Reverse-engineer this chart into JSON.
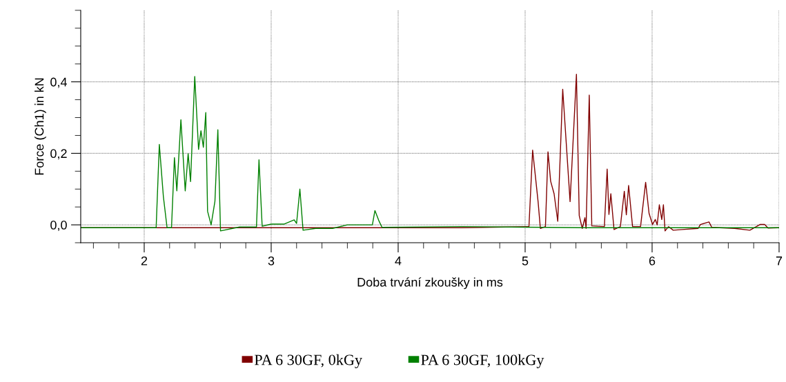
{
  "chart_data": {
    "type": "line",
    "xlabel": "Doba trvání zkoušky in ms",
    "ylabel": "Force (Ch1) in kN",
    "series": [
      {
        "name": "PA 6 30GF, 0kGy",
        "color": "#800000",
        "x": [
          1.5,
          2.5,
          3.5,
          4.5,
          5.03,
          5.059,
          5.102,
          5.12,
          5.16,
          5.18,
          5.201,
          5.228,
          5.257,
          5.296,
          5.354,
          5.404,
          5.426,
          5.45,
          5.471,
          5.48,
          5.505,
          5.525,
          5.624,
          5.646,
          5.66,
          5.675,
          5.7,
          5.75,
          5.781,
          5.797,
          5.815,
          5.846,
          5.909,
          5.949,
          5.976,
          6.003,
          6.025,
          6.04,
          6.057,
          6.076,
          6.089,
          6.102,
          6.13,
          6.166,
          6.237,
          6.363,
          6.38,
          6.448,
          6.47,
          6.65,
          6.77,
          6.85,
          6.886,
          6.913,
          7.0
        ],
        "values": [
          -0.008,
          -0.008,
          -0.008,
          -0.008,
          -0.005,
          0.209,
          0.065,
          -0.01,
          -0.005,
          0.204,
          0.122,
          0.087,
          0.01,
          0.379,
          0.065,
          0.421,
          0.026,
          -0.01,
          0.02,
          -0.01,
          0.363,
          -0.003,
          -0.005,
          0.156,
          0.029,
          0.087,
          -0.013,
          -0.005,
          0.094,
          0.028,
          0.11,
          -0.005,
          -0.005,
          0.119,
          0.032,
          0.001,
          0.015,
          0.0,
          0.056,
          0.015,
          0.056,
          -0.017,
          -0.005,
          -0.015,
          -0.013,
          -0.01,
          0.001,
          0.008,
          -0.007,
          -0.01,
          -0.015,
          0.001,
          0.001,
          -0.009,
          -0.008
        ]
      },
      {
        "name": "PA 6 30GF, 100kGy",
        "color": "#008000",
        "x": [
          1.5,
          2.094,
          2.119,
          2.151,
          2.18,
          2.215,
          2.238,
          2.257,
          2.289,
          2.323,
          2.346,
          2.365,
          2.398,
          2.428,
          2.447,
          2.466,
          2.485,
          2.499,
          2.527,
          2.557,
          2.58,
          2.601,
          2.75,
          2.884,
          2.904,
          2.929,
          3.0,
          3.1,
          3.181,
          3.2,
          3.226,
          3.251,
          3.35,
          3.484,
          3.6,
          3.797,
          3.817,
          3.85,
          3.873,
          4.5,
          5.5,
          6.5,
          7.0
        ],
        "values": [
          -0.008,
          -0.008,
          0.225,
          0.079,
          -0.008,
          -0.008,
          0.188,
          0.095,
          0.294,
          0.095,
          0.199,
          0.121,
          0.415,
          0.211,
          0.263,
          0.217,
          0.314,
          0.038,
          0.0,
          0.066,
          0.266,
          -0.017,
          -0.006,
          -0.006,
          0.182,
          -0.004,
          0.002,
          0.002,
          0.014,
          0.004,
          0.1,
          -0.015,
          -0.01,
          -0.01,
          0.0,
          0.0,
          0.04,
          0.01,
          -0.007,
          -0.005,
          -0.008,
          -0.008,
          -0.008
        ]
      }
    ],
    "xlim": [
      1.5,
      7
    ],
    "xticks": [
      {
        "value": 1.6,
        "label": null
      },
      {
        "value": 1.8,
        "label": null
      },
      {
        "value": 2,
        "label": "2"
      },
      {
        "value": 2.2,
        "label": null
      },
      {
        "value": 2.4,
        "label": null
      },
      {
        "value": 2.6,
        "label": null
      },
      {
        "value": 2.8,
        "label": null
      },
      {
        "value": 3,
        "label": "3"
      },
      {
        "value": 3.2,
        "label": null
      },
      {
        "value": 3.4,
        "label": null
      },
      {
        "value": 3.6,
        "label": null
      },
      {
        "value": 3.8,
        "label": null
      },
      {
        "value": 4,
        "label": "4"
      },
      {
        "value": 4.2,
        "label": null
      },
      {
        "value": 4.4,
        "label": null
      },
      {
        "value": 4.6,
        "label": null
      },
      {
        "value": 4.8,
        "label": null
      },
      {
        "value": 5,
        "label": "5"
      },
      {
        "value": 5.2,
        "label": null
      },
      {
        "value": 5.4,
        "label": null
      },
      {
        "value": 5.6,
        "label": null
      },
      {
        "value": 5.8,
        "label": null
      },
      {
        "value": 6,
        "label": "6"
      },
      {
        "value": 6.2,
        "label": null
      },
      {
        "value": 6.4,
        "label": null
      },
      {
        "value": 6.6,
        "label": null
      },
      {
        "value": 6.8,
        "label": null
      },
      {
        "value": 7,
        "label": "7"
      }
    ],
    "ylim": [
      -0.05,
      0.6
    ],
    "yticks": [
      {
        "value": -0.05,
        "label": null
      },
      {
        "value": 0,
        "label": "0,0"
      },
      {
        "value": 0.05,
        "label": null
      },
      {
        "value": 0.1,
        "label": null
      },
      {
        "value": 0.15,
        "label": null
      },
      {
        "value": 0.2,
        "label": "0,2"
      },
      {
        "value": 0.25,
        "label": null
      },
      {
        "value": 0.3,
        "label": null
      },
      {
        "value": 0.35,
        "label": null
      },
      {
        "value": 0.4,
        "label": "0,4"
      },
      {
        "value": 0.45,
        "label": null
      },
      {
        "value": 0.5,
        "label": null
      },
      {
        "value": 0.55,
        "label": null
      },
      {
        "value": 0.6,
        "label": null
      }
    ],
    "grid": true,
    "legend": "bottom",
    "marker": "none",
    "line_style": "solid"
  }
}
